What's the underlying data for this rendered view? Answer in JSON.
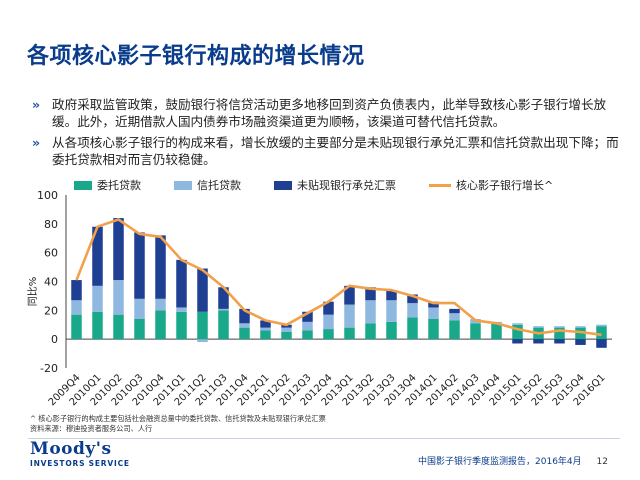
{
  "title": "各项核心影子银行构成的增长情况",
  "bullets": [
    "政府采取监管政策，鼓励银行将信贷活动更多地移回到资产负债表内，此举导致核心影子银行增长放缓。此外，近期借款人国内债券市场融资渠道更为顺畅，该渠道可替代信托贷款。",
    "从各项核心影子银行的构成来看，增长放缓的主要部分是未贴现银行承兑汇票和信托贷款出现下降；而委托贷款相对而言仍较稳健。"
  ],
  "bullet_marker": "»",
  "colors": {
    "entrusted": "#19a88a",
    "trust": "#8fb8e0",
    "bankers": "#1f3f93",
    "growth": "#f2a14b",
    "title": "#0a3c8c"
  },
  "chart_data": {
    "type": "bar",
    "stacked": true,
    "ylabel": "同比%",
    "ylim": [
      -20,
      100
    ],
    "yticks": [
      -20,
      0,
      20,
      40,
      60,
      80,
      100
    ],
    "categories": [
      "2009Q4",
      "2010Q1",
      "2010Q2",
      "2010Q3",
      "2010Q4",
      "2011Q1",
      "2011Q2",
      "2011Q3",
      "2011Q4",
      "2012Q1",
      "2012Q2",
      "2012Q3",
      "2012Q4",
      "2013Q1",
      "2013Q2",
      "2013Q3",
      "2013Q4",
      "2014Q1",
      "2014Q2",
      "2014Q3",
      "2014Q4",
      "2015Q1",
      "2015Q2",
      "2015Q3",
      "2015Q4",
      "2016Q1"
    ],
    "series": [
      {
        "name": "委托贷款",
        "key": "entrusted",
        "values": [
          17,
          19,
          17,
          14,
          20,
          19,
          19,
          20,
          8,
          6,
          5,
          6,
          7,
          8,
          11,
          12,
          15,
          14,
          13,
          11,
          11,
          10,
          8,
          8,
          8,
          9
        ]
      },
      {
        "name": "信托贷款",
        "key": "trust",
        "values": [
          10,
          18,
          24,
          14,
          8,
          3,
          -2,
          1,
          3,
          2,
          3,
          6,
          10,
          16,
          16,
          15,
          10,
          8,
          5,
          3,
          1,
          1,
          1,
          1,
          1,
          1
        ]
      },
      {
        "name": "未贴现银行承兑汇票",
        "key": "bankers",
        "values": [
          14,
          41,
          43,
          46,
          44,
          33,
          30,
          15,
          10,
          5,
          2,
          7,
          9,
          13,
          9,
          7,
          6,
          4,
          3,
          0,
          0,
          -3,
          -3,
          -3,
          -4,
          -6
        ]
      }
    ],
    "line": {
      "name": "核心影子银行增长^",
      "key": "growth",
      "values": [
        41,
        78,
        83,
        73,
        71,
        55,
        48,
        36,
        20,
        13,
        10,
        18,
        26,
        37,
        35,
        34,
        30,
        25,
        25,
        13,
        11,
        7,
        4,
        6,
        5,
        3
      ]
    }
  },
  "footnote_lines": [
    "^ 核心影子银行的构成主要包括社会融资总量中的委托贷款、信托贷款及未贴现银行承兑汇票",
    "资料来源：穆迪投资者服务公司、人行"
  ],
  "logo": {
    "brand": "Moody's",
    "sub": "INVESTORS SERVICE"
  },
  "footer": {
    "report": "中国影子银行季度监测报告，2016年4月",
    "page": "12"
  }
}
